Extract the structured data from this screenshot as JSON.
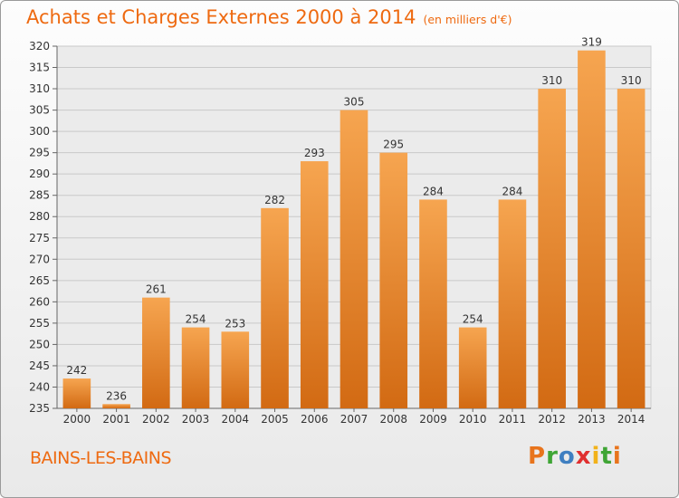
{
  "title": "Achats et Charges Externes 2000 à 2014",
  "subtitle": "(en milliers d'€)",
  "city": "BAINS-LES-BAINS",
  "brand": {
    "letters": [
      "P",
      "r",
      "o",
      "x",
      "i",
      "t",
      "i"
    ],
    "colors": [
      "#e8741c",
      "#3fa535",
      "#3f7fc1",
      "#e02f2f",
      "#f2b21a",
      "#3fa535",
      "#e8741c"
    ]
  },
  "colors": {
    "bar_top": "#f6a550",
    "bar_bottom": "#d26a13",
    "accent": "#ee6a11"
  },
  "chart_data": {
    "type": "bar",
    "categories": [
      "2000",
      "2001",
      "2002",
      "2003",
      "2004",
      "2005",
      "2006",
      "2007",
      "2008",
      "2009",
      "2010",
      "2011",
      "2012",
      "2013",
      "2014"
    ],
    "values": [
      242,
      236,
      261,
      254,
      253,
      282,
      293,
      305,
      295,
      284,
      254,
      284,
      310,
      319,
      310
    ],
    "ylim": [
      235,
      320
    ],
    "yticks": [
      235,
      240,
      245,
      250,
      255,
      260,
      265,
      270,
      275,
      280,
      285,
      290,
      295,
      300,
      305,
      310,
      315,
      320
    ],
    "grid": true,
    "legend": "none"
  }
}
